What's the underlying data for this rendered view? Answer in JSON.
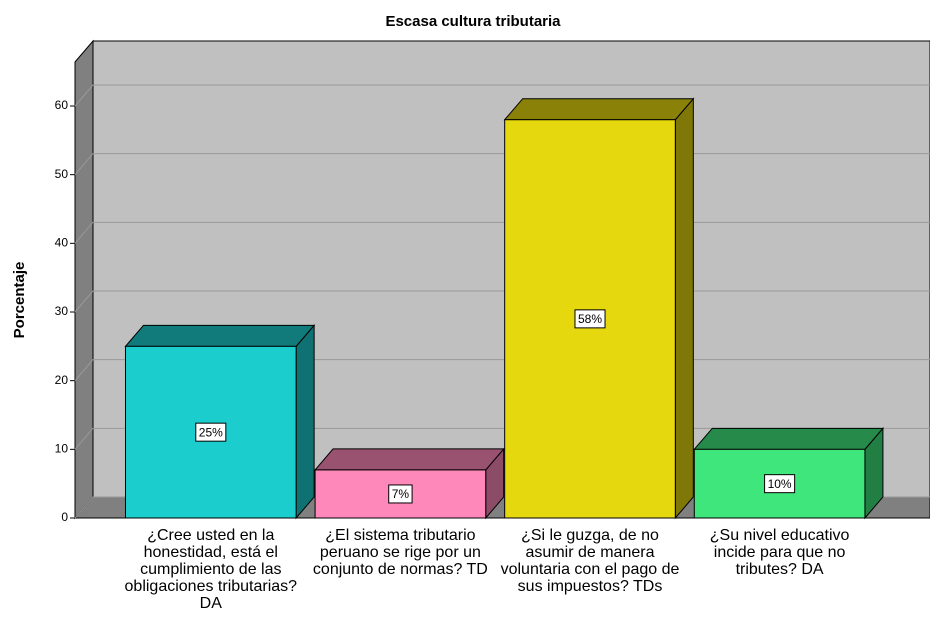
{
  "chart_data": {
    "type": "bar3d",
    "title": "Escasa cultura tributaria",
    "y_label": "Porcentaje",
    "categories": [
      "¿Cree usted en la honestidad, está el cumplimiento de las obligaciones tributarias? DA",
      "¿El sistema tributario peruano se rige por un conjunto de normas? TD",
      "¿Si le guzga, de no asumir de manera voluntaria con el pago de sus impuestos? TDs",
      "¿Su nivel educativo incide para que no tributes? DA"
    ],
    "values": [
      25,
      7,
      58,
      10
    ],
    "value_labels": [
      "25%",
      "7%",
      "58%",
      "10%"
    ],
    "colors": [
      "#1ccdce",
      "#ff88bb",
      "#e6d80e",
      "#3ee67b"
    ],
    "ylim": [
      0,
      60
    ],
    "yticks": [
      0,
      10,
      20,
      30,
      40,
      50,
      60
    ],
    "grid": true
  }
}
